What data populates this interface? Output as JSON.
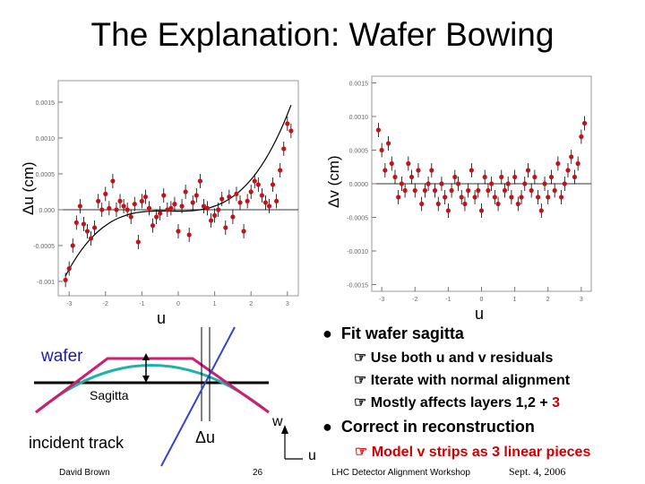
{
  "slide": {
    "title": "The Explanation: Wafer Bowing",
    "left_plot": {
      "ylabel": "Δu (cm)",
      "xlabel": "u"
    },
    "right_plot": {
      "ylabel": "Δv (cm)",
      "xlabel": "u"
    },
    "diagram": {
      "wafer_label": "wafer",
      "sagitta_label": "Sagitta",
      "track_label": "incident track",
      "du_label": "Δu",
      "w_label": "w",
      "u_label": "u"
    },
    "bullets": [
      {
        "text": "Fit wafer sagitta",
        "sub": [
          {
            "text": "Use both u and v residuals",
            "highlight": ""
          },
          {
            "text": "Iterate with normal alignment",
            "highlight": ""
          },
          {
            "text": "Mostly affects layers 1,2 + ",
            "highlight": "3"
          }
        ]
      },
      {
        "text": "Correct in reconstruction",
        "sub": [
          {
            "text": "Model v strips as 3 linear pieces",
            "highlight": ""
          }
        ]
      }
    ],
    "footer": {
      "author": "David Brown",
      "page": "26",
      "workshop": "LHC Detector Alignment Workshop",
      "date": "Sept. 4, 2006"
    }
  },
  "chart_data": [
    {
      "type": "scatter",
      "title": "",
      "xlabel": "u",
      "ylabel": "Δu (cm)",
      "xlim": [
        -3.3,
        3.3
      ],
      "ylim": [
        -0.0012,
        0.0018
      ],
      "yticks": [
        -0.001,
        -0.0005,
        0.0,
        0.0005,
        0.001,
        0.0015
      ],
      "ytick_labels": [
        "-0.001",
        "-0.0005",
        "0.000",
        "0.0005",
        "0.0010",
        "0.0015"
      ],
      "xticks": [
        -3,
        -2,
        -1,
        0,
        1,
        2,
        3
      ],
      "xtick_labels": [
        "-3",
        "-2",
        "-1",
        "0",
        "1",
        "2",
        "3"
      ],
      "x": [
        -3.1,
        -3.0,
        -2.9,
        -2.8,
        -2.7,
        -2.6,
        -2.5,
        -2.4,
        -2.3,
        -2.2,
        -2.1,
        -2.0,
        -1.9,
        -1.8,
        -1.7,
        -1.6,
        -1.5,
        -1.4,
        -1.3,
        -1.2,
        -1.1,
        -1.0,
        -0.9,
        -0.8,
        -0.7,
        -0.6,
        -0.5,
        -0.4,
        -0.3,
        -0.2,
        -0.1,
        0.0,
        0.1,
        0.2,
        0.3,
        0.4,
        0.5,
        0.6,
        0.7,
        0.8,
        0.9,
        1.0,
        1.1,
        1.2,
        1.3,
        1.4,
        1.5,
        1.6,
        1.7,
        1.8,
        1.9,
        2.0,
        2.1,
        2.2,
        2.3,
        2.4,
        2.5,
        2.6,
        2.7,
        2.8,
        2.9,
        3.0,
        3.1
      ],
      "y": [
        -0.00098,
        -0.00082,
        -0.0005,
        -0.00018,
        5e-05,
        -0.0002,
        -0.0003,
        -0.0004,
        -0.00025,
        0.00012,
        0.0,
        0.00022,
        2e-05,
        0.0004,
        0.0,
        0.00012,
        5e-05,
        0.0,
        -0.0001,
        8e-05,
        -0.00045,
        0.00012,
        0.00018,
        2e-05,
        -0.00022,
        -0.0001,
        -5e-05,
        0.0002,
        0.0,
        2e-05,
        8e-05,
        -0.0003,
        5e-05,
        0.00025,
        -0.00035,
        0.0001,
        0.0002,
        0.0004,
        5e-05,
        2e-05,
        -0.00015,
        -8e-05,
        0.0,
        0.00015,
        -0.00025,
        0.00018,
        -0.0001,
        0.00022,
        0.0001,
        -0.0003,
        0.00012,
        0.00025,
        0.0004,
        0.00035,
        0.0002,
        0.0001,
        5e-05,
        0.00035,
        0.00012,
        0.00055,
        0.00085,
        0.0012,
        0.0011
      ]
    },
    {
      "type": "scatter",
      "title": "",
      "xlabel": "u",
      "ylabel": "Δv (cm)",
      "xlim": [
        -3.3,
        3.3
      ],
      "ylim": [
        -0.0016,
        0.0016
      ],
      "yticks": [
        -0.0015,
        -0.001,
        -0.0005,
        0.0,
        0.0005,
        0.001,
        0.0015
      ],
      "ytick_labels": [
        "-0.0015",
        "-0.0010",
        "-0.0005",
        "0.0000",
        "0.0005",
        "0.0010",
        "0.0015"
      ],
      "xticks": [
        -3,
        -2,
        -1,
        0,
        1,
        2,
        3
      ],
      "xtick_labels": [
        "-3",
        "-2",
        "-1",
        "0",
        "1",
        "2",
        "3"
      ],
      "x": [
        -3.1,
        -3.0,
        -2.9,
        -2.8,
        -2.7,
        -2.6,
        -2.5,
        -2.4,
        -2.3,
        -2.2,
        -2.1,
        -2.0,
        -1.9,
        -1.8,
        -1.7,
        -1.6,
        -1.5,
        -1.4,
        -1.3,
        -1.2,
        -1.1,
        -1.0,
        -0.9,
        -0.8,
        -0.7,
        -0.6,
        -0.5,
        -0.4,
        -0.3,
        -0.2,
        -0.1,
        0.0,
        0.1,
        0.2,
        0.3,
        0.4,
        0.5,
        0.6,
        0.7,
        0.8,
        0.9,
        1.0,
        1.1,
        1.2,
        1.3,
        1.4,
        1.5,
        1.6,
        1.7,
        1.8,
        1.9,
        2.0,
        2.1,
        2.2,
        2.3,
        2.4,
        2.5,
        2.6,
        2.7,
        2.8,
        2.9,
        3.0,
        3.1
      ],
      "y": [
        0.0008,
        0.0005,
        0.0002,
        0.0006,
        0.0003,
        0.0001,
        -0.0002,
        0.0,
        -0.0001,
        0.0003,
        0.0001,
        -0.0001,
        0.0002,
        -0.0003,
        -0.0001,
        0.0,
        0.0002,
        -0.0001,
        -0.0003,
        0.0,
        -0.0002,
        -0.0004,
        -0.0001,
        0.0001,
        0.0,
        -0.0002,
        -0.0003,
        -0.0001,
        0.0002,
        -0.0002,
        -0.0001,
        -0.0004,
        0.0001,
        -0.0001,
        0.0,
        -0.0002,
        -0.0003,
        0.0001,
        -0.0001,
        0.0,
        -0.0002,
        0.0001,
        -0.0003,
        -0.0002,
        0.0,
        0.0002,
        -0.0001,
        0.0001,
        -0.0002,
        -0.0004,
        0.0,
        -0.0002,
        0.0001,
        -0.0001,
        0.0003,
        -0.0002,
        0.0,
        0.0002,
        0.0004,
        0.0001,
        0.0003,
        0.0007,
        0.0009
      ]
    }
  ]
}
